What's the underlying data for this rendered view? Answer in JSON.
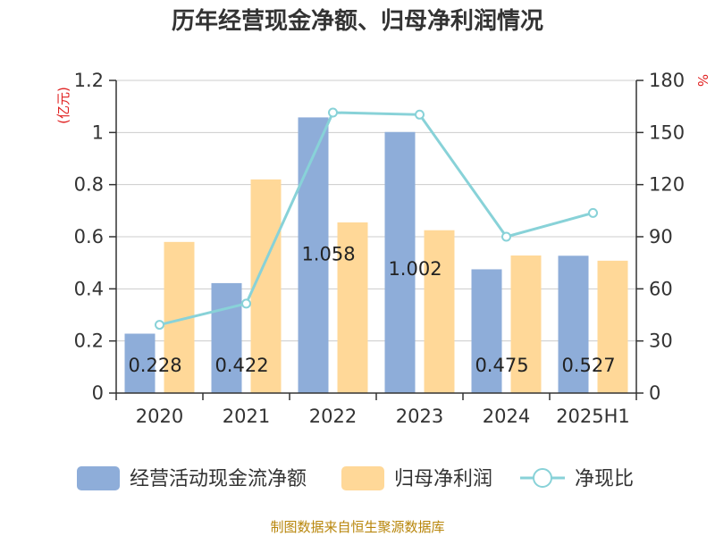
{
  "title": "历年经营现金净额、归母净利润情况",
  "source": "制图数据来自恒生聚源数据库",
  "colors": {
    "cash_flow": "#8eadd9",
    "net_profit": "#ffd898",
    "ratio": "#88d2d8",
    "unit_text": "#e02020",
    "source_text": "#b8860b"
  },
  "chart_data": {
    "type": "bar",
    "categories": [
      "2020",
      "2021",
      "2022",
      "2023",
      "2024",
      "2025H1"
    ],
    "series": [
      {
        "name": "经营活动现金流净额",
        "type": "bar",
        "axis": "left",
        "values": [
          0.228,
          0.422,
          1.058,
          1.002,
          0.475,
          0.527
        ],
        "labels": [
          "0.228",
          "0.422",
          "1.058",
          "1.002",
          "0.475",
          "0.527"
        ]
      },
      {
        "name": "归母净利润",
        "type": "bar",
        "axis": "left",
        "values": [
          0.58,
          0.82,
          0.655,
          0.625,
          0.528,
          0.508
        ]
      },
      {
        "name": "净现比",
        "type": "line",
        "axis": "right",
        "values": [
          39.3,
          51.5,
          161.5,
          160.3,
          90.0,
          103.7
        ]
      }
    ],
    "left_axis": {
      "unit": "(亿元)",
      "ylim": [
        0,
        1.2
      ],
      "ticks": [
        "0",
        "0.2",
        "0.4",
        "0.6",
        "0.8",
        "1",
        "1.2"
      ]
    },
    "right_axis": {
      "unit": "%",
      "ylim": [
        0,
        180
      ],
      "ticks": [
        "0",
        "30",
        "60",
        "90",
        "120",
        "150",
        "180"
      ]
    },
    "grid": true,
    "legend_position": "bottom"
  }
}
